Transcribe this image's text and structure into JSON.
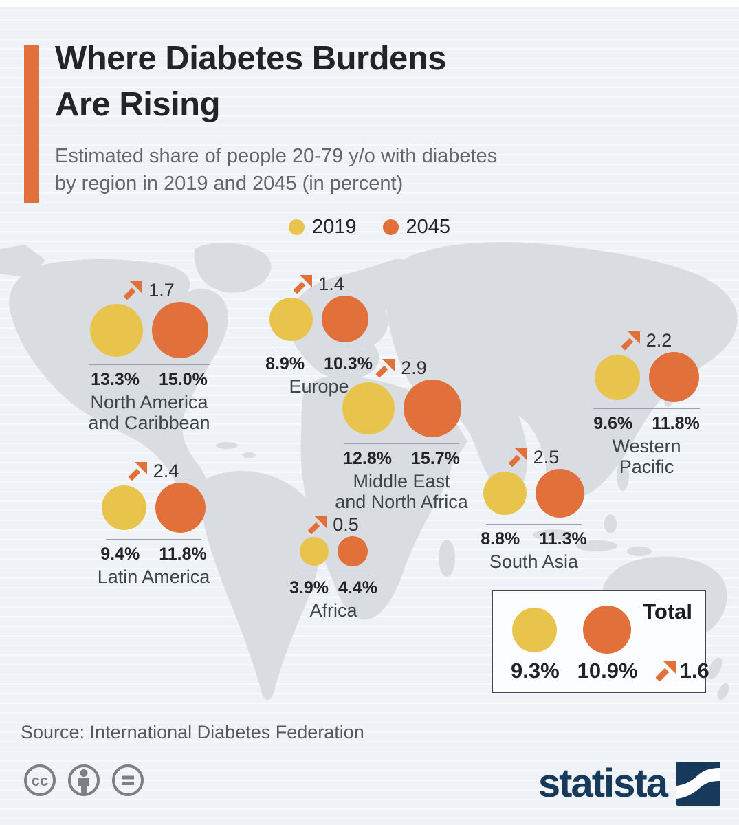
{
  "header": {
    "title_line1": "Where Diabetes Burdens",
    "title_line2": "Are Rising",
    "subtitle_line1": "Estimated share of people 20-79 y/o with diabetes",
    "subtitle_line2": "by region in 2019 and 2045 (in percent)"
  },
  "legend": {
    "items": [
      {
        "label": "2019"
      },
      {
        "label": "2045"
      }
    ]
  },
  "regions": [
    {
      "name_line1": "North America",
      "name_line2": "and Caribbean",
      "p2019": "13.3%",
      "p2045": "15.0%",
      "change": "1.7"
    },
    {
      "name_line1": "Europe",
      "name_line2": "",
      "p2019": "8.9%",
      "p2045": "10.3%",
      "change": "1.4"
    },
    {
      "name_line1": "Middle East",
      "name_line2": "and North Africa",
      "p2019": "12.8%",
      "p2045": "15.7%",
      "change": "2.9"
    },
    {
      "name_line1": "Western Pacific",
      "name_line2": "",
      "p2019": "9.6%",
      "p2045": "11.8%",
      "change": "2.2"
    },
    {
      "name_line1": "Latin America",
      "name_line2": "",
      "p2019": "9.4%",
      "p2045": "11.8%",
      "change": "2.4"
    },
    {
      "name_line1": "Africa",
      "name_line2": "",
      "p2019": "3.9%",
      "p2045": "4.4%",
      "change": "0.5"
    },
    {
      "name_line1": "South Asia",
      "name_line2": "",
      "p2019": "8.8%",
      "p2045": "11.3%",
      "change": "2.5"
    }
  ],
  "total_box": {
    "label": "Total",
    "p2019": "9.3%",
    "p2045": "10.9%",
    "change": "1.6"
  },
  "footer": {
    "source": "Source: International Diabetes Federation",
    "brand": "statista"
  },
  "colors": {
    "year2019": "#e8c44d",
    "year2045": "#e2703a",
    "map_fill": "#d9dce0",
    "navy": "#17395c"
  },
  "chart_data": {
    "type": "bubble",
    "title": "Where Diabetes Burdens Are Rising",
    "subtitle": "Estimated share of people 20-79 y/o with diabetes by region in 2019 and 2045 (in percent)",
    "series_labels": [
      "2019",
      "2045"
    ],
    "unit": "percent",
    "layout": "paired bubbles per region overlaid on a gray world map; bubble area proportional to value",
    "regions": [
      {
        "name": "North America and Caribbean",
        "v2019": 13.3,
        "v2045": 15.0,
        "change": 1.7
      },
      {
        "name": "Europe",
        "v2019": 8.9,
        "v2045": 10.3,
        "change": 1.4
      },
      {
        "name": "Middle East and North Africa",
        "v2019": 12.8,
        "v2045": 15.7,
        "change": 2.9
      },
      {
        "name": "Western Pacific",
        "v2019": 9.6,
        "v2045": 11.8,
        "change": 2.2
      },
      {
        "name": "Latin America",
        "v2019": 9.4,
        "v2045": 11.8,
        "change": 2.4
      },
      {
        "name": "Africa",
        "v2019": 3.9,
        "v2045": 4.4,
        "change": 0.5
      },
      {
        "name": "South Asia",
        "v2019": 8.8,
        "v2045": 11.3,
        "change": 2.5
      }
    ],
    "total": {
      "name": "Total",
      "v2019": 9.3,
      "v2045": 10.9,
      "change": 1.6
    },
    "source": "International Diabetes Federation"
  }
}
